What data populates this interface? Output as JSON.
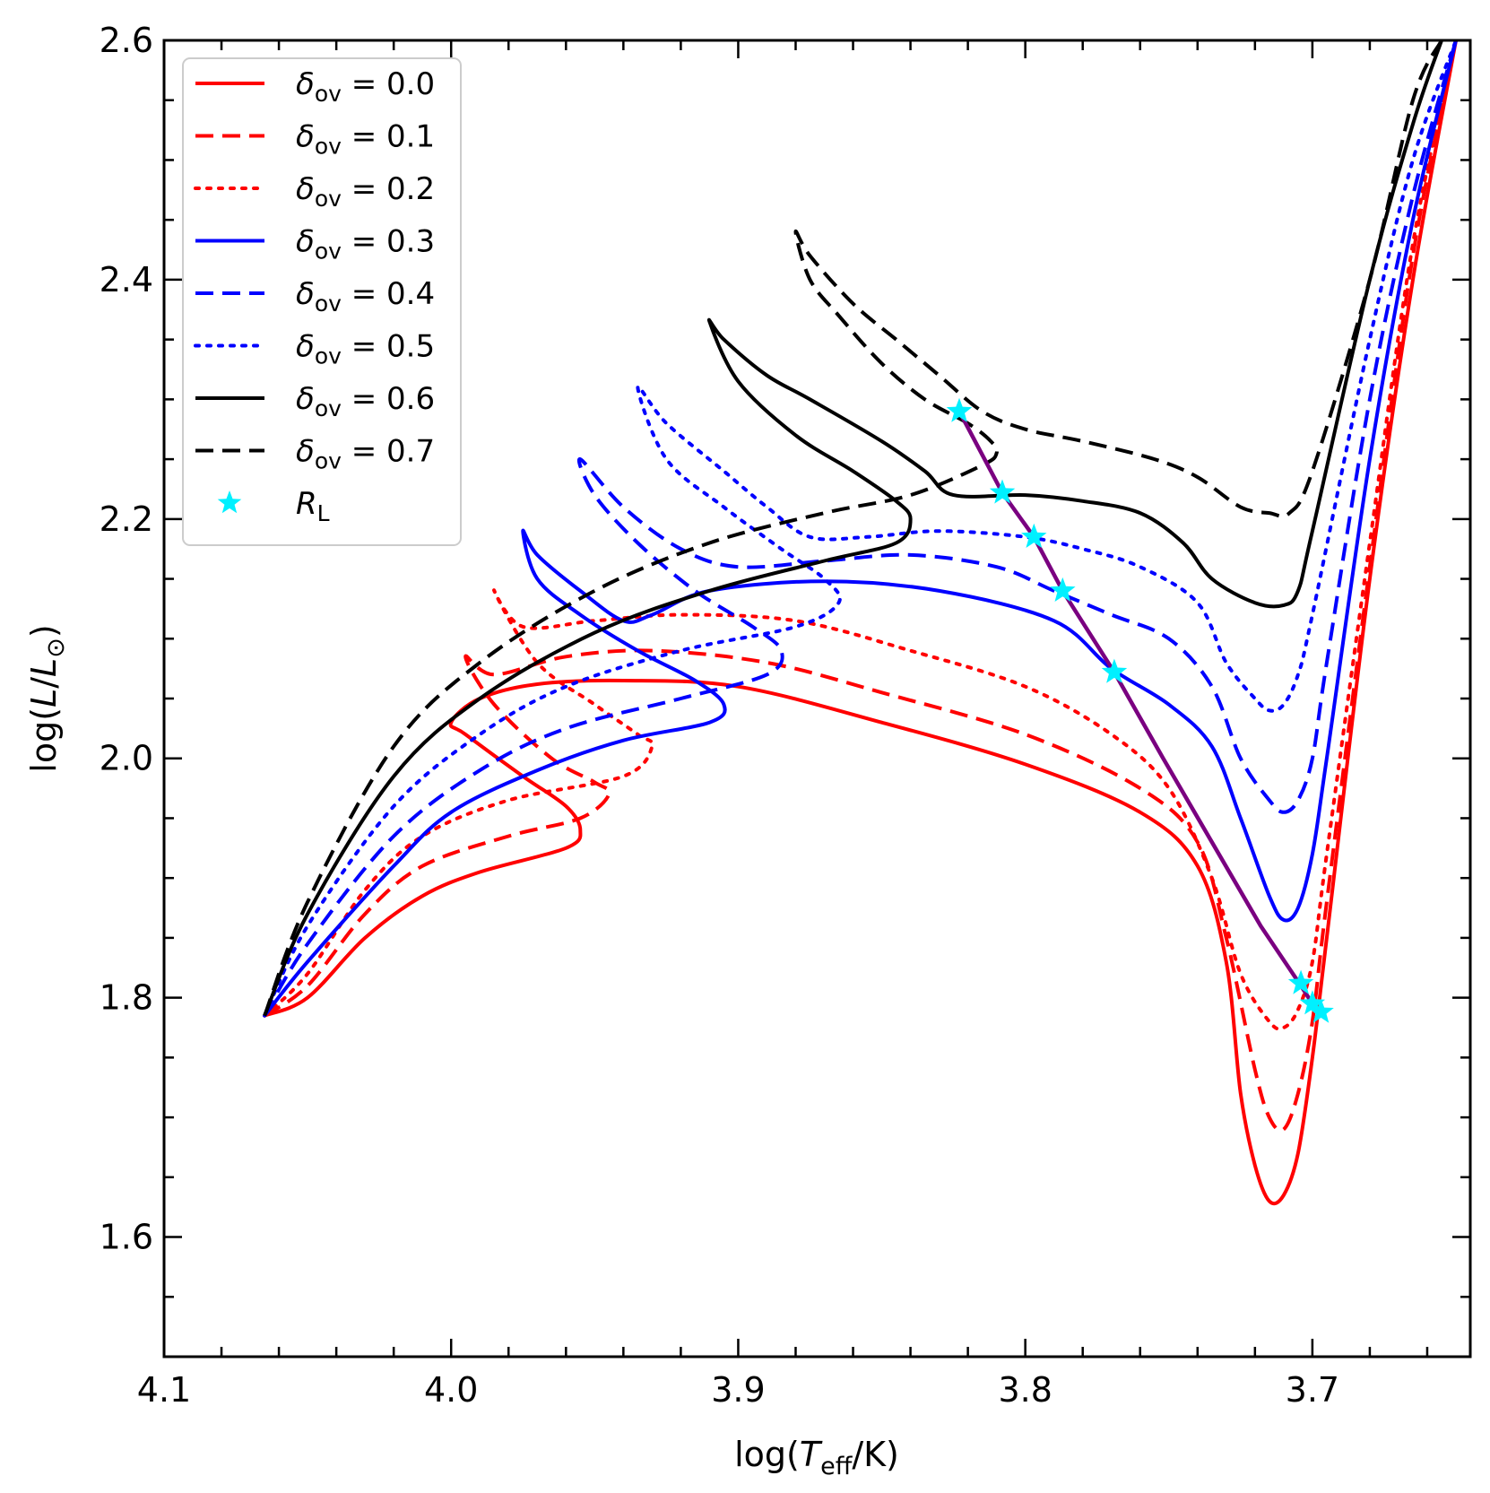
{
  "chart_data": {
    "type": "line",
    "title": "",
    "xlabel": {
      "prefix": "log(",
      "var": "T",
      "sub": "eff",
      "suffix": "/K)"
    },
    "ylabel": {
      "prefix": "log(",
      "var": "L",
      "mid": "/",
      "var2": "L",
      "sub": "⊙",
      "suffix": ")"
    },
    "xlim": [
      4.1,
      3.645
    ],
    "ylim": [
      1.5,
      2.6
    ],
    "x_inverted": true,
    "xticks": [
      4.1,
      4.0,
      3.9,
      3.8,
      3.7
    ],
    "xtick_labels": [
      "4.1",
      "4.0",
      "3.9",
      "3.8",
      "3.7"
    ],
    "yticks": [
      1.6,
      1.8,
      2.0,
      2.2,
      2.4,
      2.6
    ],
    "ytick_labels": [
      "1.6",
      "1.8",
      "2.0",
      "2.2",
      "2.4",
      "2.6"
    ],
    "legend_position": "top-left",
    "series": [
      {
        "name": "δov = 0.0",
        "symbol": "δ",
        "sub": "ov",
        "value": "= 0.0",
        "color": "#ff0000",
        "dash": "solid",
        "points": [
          [
            4.065,
            1.785
          ],
          [
            4.05,
            1.8
          ],
          [
            4.03,
            1.85
          ],
          [
            4.01,
            1.885
          ],
          [
            3.99,
            1.905
          ],
          [
            3.96,
            1.925
          ],
          [
            3.955,
            1.94
          ],
          [
            3.96,
            1.96
          ],
          [
            3.975,
            1.985
          ],
          [
            3.995,
            2.02
          ],
          [
            4.0,
            2.03
          ],
          [
            3.99,
            2.05
          ],
          [
            3.97,
            2.062
          ],
          [
            3.94,
            2.065
          ],
          [
            3.9,
            2.06
          ],
          [
            3.85,
            2.03
          ],
          [
            3.8,
            1.995
          ],
          [
            3.76,
            1.955
          ],
          [
            3.74,
            1.91
          ],
          [
            3.73,
            1.83
          ],
          [
            3.725,
            1.72
          ],
          [
            3.72,
            1.66
          ],
          [
            3.715,
            1.63
          ],
          [
            3.71,
            1.635
          ],
          [
            3.705,
            1.67
          ],
          [
            3.7,
            1.75
          ],
          [
            3.695,
            1.85
          ],
          [
            3.68,
            2.15
          ],
          [
            3.665,
            2.4
          ],
          [
            3.65,
            2.6
          ]
        ]
      },
      {
        "name": "δov = 0.1",
        "symbol": "δ",
        "sub": "ov",
        "value": "= 0.1",
        "color": "#ff0000",
        "dash": "dashed",
        "points": [
          [
            4.065,
            1.785
          ],
          [
            4.05,
            1.81
          ],
          [
            4.03,
            1.87
          ],
          [
            4.01,
            1.91
          ],
          [
            3.98,
            1.935
          ],
          [
            3.955,
            1.95
          ],
          [
            3.945,
            1.97
          ],
          [
            3.95,
            1.98
          ],
          [
            3.965,
            2.0
          ],
          [
            3.985,
            2.045
          ],
          [
            3.995,
            2.085
          ],
          [
            3.985,
            2.07
          ],
          [
            3.96,
            2.085
          ],
          [
            3.93,
            2.09
          ],
          [
            3.89,
            2.08
          ],
          [
            3.85,
            2.055
          ],
          [
            3.8,
            2.02
          ],
          [
            3.76,
            1.975
          ],
          [
            3.74,
            1.93
          ],
          [
            3.73,
            1.85
          ],
          [
            3.72,
            1.74
          ],
          [
            3.715,
            1.7
          ],
          [
            3.71,
            1.69
          ],
          [
            3.705,
            1.72
          ],
          [
            3.7,
            1.78
          ],
          [
            3.695,
            1.88
          ],
          [
            3.68,
            2.16
          ],
          [
            3.665,
            2.42
          ],
          [
            3.65,
            2.6
          ]
        ]
      },
      {
        "name": "δov = 0.2",
        "symbol": "δ",
        "sub": "ov",
        "value": "= 0.2",
        "color": "#ff0000",
        "dash": "dotted",
        "points": [
          [
            4.065,
            1.785
          ],
          [
            4.05,
            1.82
          ],
          [
            4.03,
            1.89
          ],
          [
            4.01,
            1.935
          ],
          [
            3.98,
            1.965
          ],
          [
            3.94,
            1.985
          ],
          [
            3.93,
            2.01
          ],
          [
            3.935,
            2.02
          ],
          [
            3.95,
            2.045
          ],
          [
            3.97,
            2.08
          ],
          [
            3.985,
            2.14
          ],
          [
            3.975,
            2.11
          ],
          [
            3.95,
            2.115
          ],
          [
            3.92,
            2.12
          ],
          [
            3.88,
            2.115
          ],
          [
            3.84,
            2.09
          ],
          [
            3.8,
            2.06
          ],
          [
            3.77,
            2.02
          ],
          [
            3.75,
            1.975
          ],
          [
            3.735,
            1.9
          ],
          [
            3.725,
            1.82
          ],
          [
            3.715,
            1.78
          ],
          [
            3.71,
            1.775
          ],
          [
            3.705,
            1.79
          ],
          [
            3.7,
            1.83
          ],
          [
            3.695,
            1.92
          ],
          [
            3.68,
            2.18
          ],
          [
            3.665,
            2.43
          ],
          [
            3.65,
            2.6
          ]
        ]
      },
      {
        "name": "δov = 0.3",
        "symbol": "δ",
        "sub": "ov",
        "value": "= 0.3",
        "color": "#0000ff",
        "dash": "solid",
        "points": [
          [
            4.065,
            1.785
          ],
          [
            4.05,
            1.83
          ],
          [
            4.02,
            1.91
          ],
          [
            4.0,
            1.955
          ],
          [
            3.97,
            1.99
          ],
          [
            3.94,
            2.015
          ],
          [
            3.91,
            2.03
          ],
          [
            3.905,
            2.045
          ],
          [
            3.915,
            2.065
          ],
          [
            3.935,
            2.09
          ],
          [
            3.955,
            2.12
          ],
          [
            3.97,
            2.15
          ],
          [
            3.975,
            2.19
          ],
          [
            3.97,
            2.17
          ],
          [
            3.955,
            2.14
          ],
          [
            3.94,
            2.115
          ],
          [
            3.93,
            2.12
          ],
          [
            3.91,
            2.14
          ],
          [
            3.87,
            2.148
          ],
          [
            3.83,
            2.14
          ],
          [
            3.79,
            2.115
          ],
          [
            3.77,
            2.075
          ],
          [
            3.75,
            2.045
          ],
          [
            3.735,
            2.01
          ],
          [
            3.725,
            1.95
          ],
          [
            3.715,
            1.885
          ],
          [
            3.71,
            1.865
          ],
          [
            3.705,
            1.875
          ],
          [
            3.7,
            1.92
          ],
          [
            3.695,
            2.0
          ],
          [
            3.68,
            2.25
          ],
          [
            3.665,
            2.45
          ],
          [
            3.65,
            2.6
          ]
        ]
      },
      {
        "name": "δov = 0.4",
        "symbol": "δ",
        "sub": "ov",
        "value": "= 0.4",
        "color": "#0000ff",
        "dash": "dashed",
        "points": [
          [
            4.065,
            1.785
          ],
          [
            4.05,
            1.845
          ],
          [
            4.02,
            1.935
          ],
          [
            3.99,
            1.99
          ],
          [
            3.96,
            2.025
          ],
          [
            3.92,
            2.05
          ],
          [
            3.89,
            2.07
          ],
          [
            3.885,
            2.09
          ],
          [
            3.895,
            2.11
          ],
          [
            3.915,
            2.14
          ],
          [
            3.935,
            2.18
          ],
          [
            3.95,
            2.22
          ],
          [
            3.955,
            2.25
          ],
          [
            3.94,
            2.21
          ],
          [
            3.92,
            2.175
          ],
          [
            3.9,
            2.16
          ],
          [
            3.87,
            2.165
          ],
          [
            3.84,
            2.17
          ],
          [
            3.81,
            2.16
          ],
          [
            3.79,
            2.14
          ],
          [
            3.77,
            2.12
          ],
          [
            3.75,
            2.1
          ],
          [
            3.735,
            2.06
          ],
          [
            3.725,
            2.0
          ],
          [
            3.715,
            1.965
          ],
          [
            3.71,
            1.955
          ],
          [
            3.705,
            1.965
          ],
          [
            3.7,
            2.0
          ],
          [
            3.695,
            2.08
          ],
          [
            3.68,
            2.3
          ],
          [
            3.665,
            2.47
          ],
          [
            3.65,
            2.6
          ]
        ]
      },
      {
        "name": "δov = 0.5",
        "symbol": "δ",
        "sub": "ov",
        "value": "= 0.5",
        "color": "#0000ff",
        "dash": "dotted",
        "points": [
          [
            4.065,
            1.785
          ],
          [
            4.05,
            1.86
          ],
          [
            4.02,
            1.96
          ],
          [
            3.99,
            2.02
          ],
          [
            3.96,
            2.06
          ],
          [
            3.92,
            2.09
          ],
          [
            3.88,
            2.11
          ],
          [
            3.865,
            2.13
          ],
          [
            3.87,
            2.15
          ],
          [
            3.885,
            2.175
          ],
          [
            3.905,
            2.21
          ],
          [
            3.925,
            2.25
          ],
          [
            3.935,
            2.31
          ],
          [
            3.925,
            2.28
          ],
          [
            3.905,
            2.24
          ],
          [
            3.89,
            2.21
          ],
          [
            3.875,
            2.185
          ],
          [
            3.855,
            2.185
          ],
          [
            3.83,
            2.19
          ],
          [
            3.8,
            2.185
          ],
          [
            3.78,
            2.175
          ],
          [
            3.76,
            2.16
          ],
          [
            3.74,
            2.13
          ],
          [
            3.73,
            2.08
          ],
          [
            3.72,
            2.05
          ],
          [
            3.715,
            2.04
          ],
          [
            3.71,
            2.045
          ],
          [
            3.705,
            2.07
          ],
          [
            3.7,
            2.12
          ],
          [
            3.68,
            2.35
          ],
          [
            3.665,
            2.5
          ],
          [
            3.65,
            2.6
          ]
        ]
      },
      {
        "name": "δov = 0.6",
        "symbol": "δ",
        "sub": "ov",
        "value": "= 0.6",
        "color": "#000000",
        "dash": "solid",
        "points": [
          [
            4.065,
            1.785
          ],
          [
            4.05,
            1.87
          ],
          [
            4.02,
            1.985
          ],
          [
            3.99,
            2.05
          ],
          [
            3.95,
            2.105
          ],
          [
            3.91,
            2.14
          ],
          [
            3.87,
            2.165
          ],
          [
            3.845,
            2.18
          ],
          [
            3.84,
            2.2
          ],
          [
            3.845,
            2.215
          ],
          [
            3.86,
            2.24
          ],
          [
            3.88,
            2.27
          ],
          [
            3.9,
            2.315
          ],
          [
            3.91,
            2.365
          ],
          [
            3.905,
            2.35
          ],
          [
            3.89,
            2.32
          ],
          [
            3.875,
            2.3
          ],
          [
            3.85,
            2.265
          ],
          [
            3.835,
            2.24
          ],
          [
            3.825,
            2.22
          ],
          [
            3.8,
            2.22
          ],
          [
            3.78,
            2.215
          ],
          [
            3.76,
            2.205
          ],
          [
            3.745,
            2.18
          ],
          [
            3.735,
            2.15
          ],
          [
            3.72,
            2.13
          ],
          [
            3.71,
            2.128
          ],
          [
            3.705,
            2.14
          ],
          [
            3.7,
            2.19
          ],
          [
            3.68,
            2.4
          ],
          [
            3.665,
            2.53
          ],
          [
            3.655,
            2.6
          ]
        ]
      },
      {
        "name": "δov = 0.7",
        "symbol": "δ",
        "sub": "ov",
        "value": "= 0.7",
        "color": "#000000",
        "dash": "dashed",
        "points": [
          [
            4.065,
            1.785
          ],
          [
            4.05,
            1.88
          ],
          [
            4.02,
            2.01
          ],
          [
            3.99,
            2.08
          ],
          [
            3.95,
            2.14
          ],
          [
            3.91,
            2.18
          ],
          [
            3.87,
            2.205
          ],
          [
            3.84,
            2.22
          ],
          [
            3.815,
            2.245
          ],
          [
            3.81,
            2.255
          ],
          [
            3.812,
            2.265
          ],
          [
            3.82,
            2.28
          ],
          [
            3.835,
            2.3
          ],
          [
            3.85,
            2.33
          ],
          [
            3.865,
            2.37
          ],
          [
            3.875,
            2.4
          ],
          [
            3.88,
            2.44
          ],
          [
            3.875,
            2.42
          ],
          [
            3.86,
            2.38
          ],
          [
            3.845,
            2.35
          ],
          [
            3.83,
            2.32
          ],
          [
            3.815,
            2.29
          ],
          [
            3.8,
            2.275
          ],
          [
            3.78,
            2.265
          ],
          [
            3.755,
            2.25
          ],
          [
            3.74,
            2.235
          ],
          [
            3.725,
            2.21
          ],
          [
            3.715,
            2.205
          ],
          [
            3.708,
            2.205
          ],
          [
            3.7,
            2.24
          ],
          [
            3.68,
            2.4
          ],
          [
            3.665,
            2.55
          ],
          [
            3.655,
            2.6
          ]
        ]
      }
    ],
    "rl_line": {
      "color": "#7a0080",
      "points": [
        [
          3.823,
          2.29
        ],
        [
          3.808,
          2.222
        ],
        [
          3.797,
          2.185
        ],
        [
          3.787,
          2.14
        ],
        [
          3.769,
          2.072
        ],
        [
          3.752,
          2.0
        ],
        [
          3.735,
          1.93
        ],
        [
          3.718,
          1.86
        ],
        [
          3.704,
          1.81
        ],
        [
          3.7,
          1.795
        ],
        [
          3.698,
          1.788
        ]
      ]
    },
    "rl_points": {
      "name": "RL",
      "symbol": "R",
      "sub": "L",
      "color": "#00f0ff",
      "points": [
        [
          3.823,
          2.29
        ],
        [
          3.808,
          2.222
        ],
        [
          3.797,
          2.185
        ],
        [
          3.787,
          2.14
        ],
        [
          3.769,
          2.072
        ],
        [
          3.704,
          1.812
        ],
        [
          3.7,
          1.795
        ],
        [
          3.697,
          1.788
        ]
      ]
    }
  }
}
